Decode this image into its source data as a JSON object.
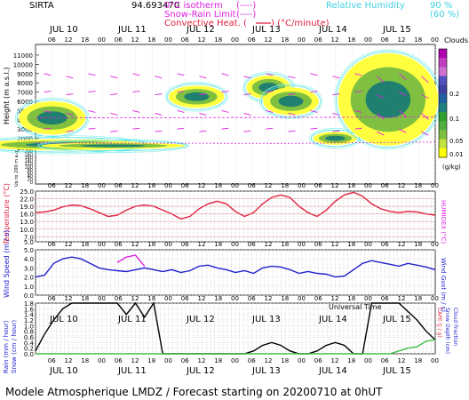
{
  "header": {
    "site": "SIRTA",
    "number": "94.693470",
    "legend_isotherm": "0°C isotherm",
    "legend_isotherm_sym": "(----)",
    "legend_snowrain": "Snow-Rain Limit",
    "legend_snowrain_sym": "(----)",
    "legend_convheat": "Convective Heat. (",
    "legend_convheat_unit": ") (°C/minute)",
    "rh_label": "Relative Humidity",
    "rh_90": "90 %",
    "rh_60": "(60 %)"
  },
  "footer": {
    "title": "Modele Atmospherique LMDZ / Forecast starting on 20200710 at 0hUT"
  },
  "colors": {
    "magenta": "#e020e0",
    "cyan": "#40d0e0",
    "red": "#e02040",
    "blue": "#2020d0",
    "grid": "#888888",
    "rh90": "#40e0e0",
    "rh60": "#a0f0f0"
  },
  "chart_data": [
    {
      "type": "heatmap",
      "ylabel": "Height (m a.s.l.)",
      "ylabel2": "Up to 200 m a.g.l.",
      "days": [
        "JUL 10",
        "JUL 11",
        "JUL 12",
        "JUL 13",
        "JUL 14",
        "JUL 15"
      ],
      "hours": [
        "06",
        "12",
        "18",
        "00"
      ],
      "yticks": [
        "11000",
        "10000",
        "9000",
        "8000",
        "7000",
        "6000",
        "5000",
        "4000",
        "3000",
        "2000",
        "1000",
        "200",
        "180",
        "160",
        "140",
        "120",
        "100",
        "80",
        "60",
        "40",
        "20",
        "0"
      ],
      "colorbar": {
        "title": "Clouds",
        "unit": "(g/kg)",
        "labels": [
          "0.2",
          "0.1",
          "0.05",
          "0.01"
        ],
        "colors": [
          "#b000b0",
          "#c040c0",
          "#d070d0",
          "#5050c0",
          "#4040a0",
          "#2060a0",
          "#208080",
          "#30a030",
          "#50b040",
          "#80c040",
          "#c0e040",
          "#ffff00"
        ]
      },
      "cloud_blobs": [
        {
          "t": 6,
          "z": 4200,
          "w": 12,
          "h": 1800
        },
        {
          "t": 10,
          "z": 1300,
          "w": 30,
          "h": 600
        },
        {
          "t": 28,
          "z": 1200,
          "w": 26,
          "h": 350
        },
        {
          "t": 58,
          "z": 6500,
          "w": 10,
          "h": 1200
        },
        {
          "t": 84,
          "z": 7500,
          "w": 8,
          "h": 1300
        },
        {
          "t": 92,
          "z": 6000,
          "w": 10,
          "h": 1500
        },
        {
          "t": 108,
          "z": 2000,
          "w": 8,
          "h": 700
        },
        {
          "t": 127,
          "z": 6200,
          "w": 18,
          "h": 5000
        }
      ]
    },
    {
      "type": "line",
      "ylabel": "Temperature (°C)",
      "ylabel2": "HUMIDEX (°C)",
      "ylim": [
        5.0,
        25.0
      ],
      "yticks": [
        "25.0",
        "22.0",
        "19.0",
        "16.0",
        "13.0",
        "10.0",
        "7.0",
        "5.0"
      ],
      "series": [
        {
          "values": [
            16.5,
            16.8,
            17.5,
            18.8,
            19.5,
            19.2,
            18.0,
            16.5,
            15.0,
            15.5,
            17.5,
            19.0,
            19.5,
            19.0,
            17.5,
            16.0,
            14.0,
            15.0,
            18.0,
            20.0,
            21.0,
            20.0,
            17.0,
            15.0,
            16.5,
            20.0,
            22.5,
            23.5,
            22.5,
            19.0,
            16.5,
            15.0,
            17.5,
            21.0,
            23.5,
            24.5,
            23.0,
            20.0,
            18.0,
            17.0,
            16.5,
            17.0,
            16.8,
            16.0,
            15.5
          ]
        }
      ]
    },
    {
      "type": "line",
      "ylabel": "Wind Speed (m / s)",
      "ylabel2": "Wind Gust (m / s)",
      "yticks": [
        "5.0",
        "4.0",
        "3.0",
        "2.0",
        "1.0",
        "0.0"
      ],
      "ylim": [
        0.0,
        5.0
      ],
      "series": [
        {
          "values": [
            2.0,
            2.2,
            3.5,
            4.0,
            4.2,
            4.0,
            3.5,
            3.0,
            2.8,
            2.7,
            2.6,
            2.8,
            3.0,
            2.8,
            2.6,
            2.8,
            2.5,
            2.7,
            3.2,
            3.3,
            3.0,
            2.8,
            2.5,
            2.7,
            2.4,
            3.0,
            3.2,
            3.1,
            2.8,
            2.4,
            2.6,
            2.4,
            2.3,
            2.0,
            2.1,
            2.8,
            3.5,
            3.8,
            3.6,
            3.4,
            3.2,
            3.5,
            3.3,
            3.1,
            2.8
          ]
        },
        {
          "values": [
            null,
            null,
            null,
            null,
            null,
            null,
            null,
            null,
            null,
            3.6,
            4.2,
            4.4,
            3.2,
            null,
            null,
            null,
            null,
            null,
            null,
            null,
            null,
            null,
            null,
            null,
            null,
            null,
            null,
            null,
            null,
            null,
            null,
            null,
            null,
            null,
            null,
            null,
            null,
            null,
            null,
            null,
            null,
            null,
            null,
            null,
            null
          ]
        }
      ]
    },
    {
      "type": "line",
      "ylabel": "Rain (mm / hour)",
      "ylabel_snow": "Snow (cm / hour)",
      "ylabel2": "CAPE (J / g)",
      "ylabel2_b": "Snow Depth (cm)",
      "ylabel2_c": "Cloud Fraction",
      "yticks": [
        "1.8",
        "1.6",
        "1.4",
        "1.2",
        "1.0",
        "0.8",
        "0.6",
        "0.4",
        "0.2",
        "0.0"
      ],
      "ylim": [
        0.0,
        1.8
      ],
      "xlabel": "Universal Time",
      "series": [
        {
          "values": [
            0.1,
            0.7,
            1.2,
            1.6,
            1.8,
            1.8,
            1.8,
            1.8,
            1.8,
            1.8,
            1.4,
            1.8,
            1.3,
            1.8,
            0.0,
            0.0,
            0.0,
            0.0,
            0.0,
            0.0,
            0.0,
            0.0,
            0.0,
            0.0,
            0.1,
            0.3,
            0.4,
            0.3,
            0.1,
            0.0,
            0.0,
            0.1,
            0.3,
            0.4,
            0.3,
            0.0,
            0.0,
            1.8,
            1.8,
            1.8,
            1.8,
            1.5,
            1.2,
            0.8,
            0.5
          ]
        },
        {
          "values": [
            0,
            0,
            0,
            0,
            0,
            0,
            0,
            0,
            0,
            0,
            0,
            0,
            0,
            0,
            0,
            0,
            0,
            0,
            0,
            0,
            0,
            0,
            0,
            0,
            0,
            0,
            0,
            0,
            0,
            0,
            0,
            0,
            0,
            0,
            0,
            0,
            0,
            0,
            0,
            0,
            0.1,
            0.2,
            0.25,
            0.45,
            0.5
          ]
        }
      ]
    }
  ]
}
